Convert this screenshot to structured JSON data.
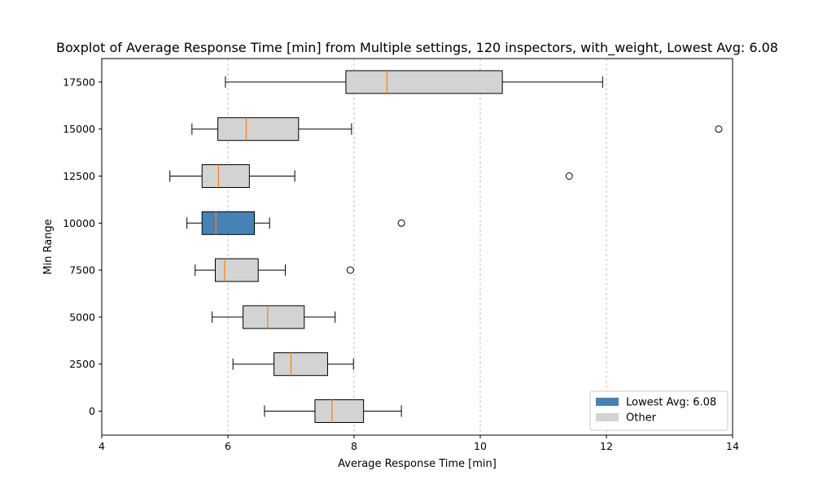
{
  "chart_data": {
    "type": "boxplot",
    "orientation": "horizontal",
    "title": "Boxplot of Average Response Time [min] from Multiple settings, 120 inspectors, with_weight, Lowest Avg: 6.08",
    "xlabel": "Average Response Time [min]",
    "ylabel": "Min Range",
    "xlim": [
      4,
      14
    ],
    "xticks": [
      4,
      6,
      8,
      10,
      12,
      14
    ],
    "yticks": [
      0,
      2500,
      5000,
      7500,
      10000,
      12500,
      15000,
      17500
    ],
    "vertical_grid": true,
    "colors": {
      "highlight": "#4682b4",
      "other": "#d3d3d3",
      "median": "#ff7f0e"
    },
    "legend": {
      "position": "lower-right",
      "entries": [
        {
          "label": "Lowest Avg: 6.08",
          "color": "#4682b4"
        },
        {
          "label": "Other",
          "color": "#d3d3d3"
        }
      ]
    },
    "series": [
      {
        "category": 0,
        "whisker_low": 6.58,
        "q1": 7.38,
        "median": 7.65,
        "q3": 8.15,
        "whisker_high": 8.75,
        "outliers": [],
        "highlight": false
      },
      {
        "category": 2500,
        "whisker_low": 6.08,
        "q1": 6.73,
        "median": 7.0,
        "q3": 7.58,
        "whisker_high": 7.99,
        "outliers": [],
        "highlight": false
      },
      {
        "category": 5000,
        "whisker_low": 5.75,
        "q1": 6.24,
        "median": 6.63,
        "q3": 7.21,
        "whisker_high": 7.7,
        "outliers": [],
        "highlight": false
      },
      {
        "category": 7500,
        "whisker_low": 5.48,
        "q1": 5.8,
        "median": 5.95,
        "q3": 6.48,
        "whisker_high": 6.91,
        "outliers": [
          7.94
        ],
        "highlight": false
      },
      {
        "category": 10000,
        "whisker_low": 5.35,
        "q1": 5.59,
        "median": 5.81,
        "q3": 6.42,
        "whisker_high": 6.66,
        "outliers": [
          8.75
        ],
        "highlight": true
      },
      {
        "category": 12500,
        "whisker_low": 5.08,
        "q1": 5.59,
        "median": 5.85,
        "q3": 6.34,
        "whisker_high": 7.06,
        "outliers": [
          11.41
        ],
        "highlight": false
      },
      {
        "category": 15000,
        "whisker_low": 5.43,
        "q1": 5.84,
        "median": 6.29,
        "q3": 7.12,
        "whisker_high": 7.96,
        "outliers": [
          13.78
        ],
        "highlight": false
      },
      {
        "category": 17500,
        "whisker_low": 5.96,
        "q1": 7.87,
        "median": 8.52,
        "q3": 10.35,
        "whisker_high": 11.94,
        "outliers": [],
        "highlight": false
      }
    ]
  }
}
